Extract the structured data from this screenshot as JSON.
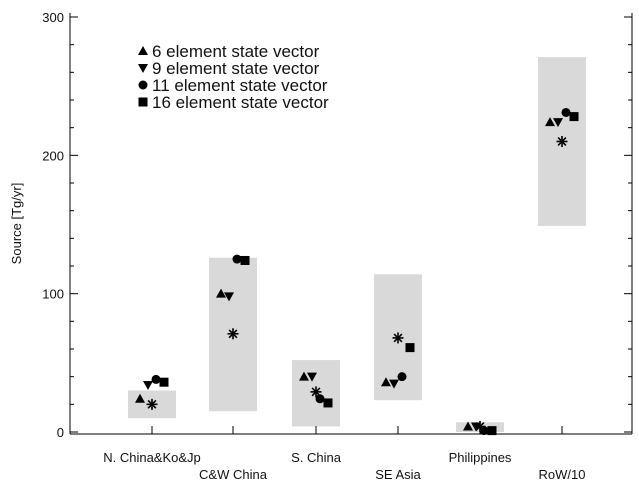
{
  "chart_data": {
    "type": "scatter",
    "ylabel": "Source [Tg/yr]",
    "xlabel": "",
    "ylim": [
      0,
      300
    ],
    "yticks": [
      0,
      100,
      200,
      300
    ],
    "y_minor_step": 20,
    "categories": [
      "N. China&Ko&Jp",
      "C&W China",
      "S. China",
      "SE Asia",
      "Philippines",
      "RoW/10"
    ],
    "uncertainty_ranges": [
      {
        "category": "N. China&Ko&Jp",
        "low": 10,
        "high": 30
      },
      {
        "category": "C&W China",
        "low": 15,
        "high": 126
      },
      {
        "category": "S. China",
        "low": 4,
        "high": 52
      },
      {
        "category": "SE Asia",
        "low": 23,
        "high": 114
      },
      {
        "category": "Philippines",
        "low": 0,
        "high": 7
      },
      {
        "category": "RoW/10",
        "low": 149,
        "high": 271
      }
    ],
    "series": [
      {
        "name": "6 element state vector",
        "marker": "triangle-up",
        "values": [
          24,
          100,
          40,
          36,
          4,
          224
        ]
      },
      {
        "name": "9 element state vector",
        "marker": "triangle-down",
        "values": [
          34,
          98,
          40,
          35,
          4,
          224
        ]
      },
      {
        "name": "11 element state vector",
        "marker": "circle",
        "values": [
          38,
          125,
          24,
          40,
          1,
          231
        ]
      },
      {
        "name": "16 element state vector",
        "marker": "square",
        "values": [
          36,
          124,
          21,
          61,
          1,
          228
        ]
      },
      {
        "name": "",
        "marker": "asterisk",
        "values": [
          20,
          71,
          29,
          68,
          4,
          210
        ]
      }
    ],
    "legend_position": "top-left",
    "grid": false,
    "colors": {
      "markers": "#000000",
      "range_box": "#d9d9d9",
      "axes": "#000000"
    }
  }
}
